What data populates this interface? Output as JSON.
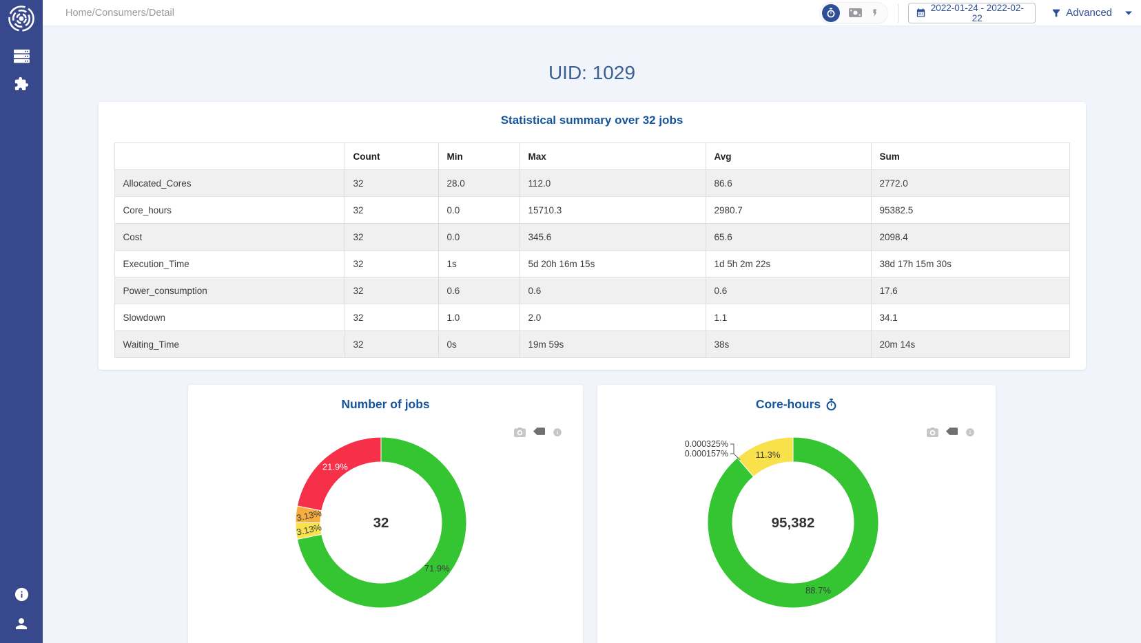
{
  "colors": {
    "sidebar": "#38488c",
    "accent_navy": "#2e4f96",
    "title_blue": "#15549a",
    "page_title_blue": "#3a6191",
    "content_bg": "#f1f4fb",
    "green": "#35c532",
    "yellow": "#f8e14b",
    "orange": "#f7ae3d",
    "red": "#f7304a"
  },
  "sidebar": {
    "icons": [
      "logo",
      "servers-icon",
      "puzzle-icon",
      "info-icon",
      "user-icon"
    ]
  },
  "topbar": {
    "breadcrumb": "Home/Consumers/Detail",
    "metric_toggle": {
      "options": [
        "stopwatch-icon",
        "banknote-icon",
        "lightning-icon"
      ],
      "active": "stopwatch-icon"
    },
    "date_range": "2022-01-24 - 2022-02-22",
    "advanced_label": "Advanced"
  },
  "page_title": "UID: 1029",
  "summary": {
    "title": "Statistical summary over 32 jobs",
    "columns": [
      "",
      "Count",
      "Min",
      "Max",
      "Avg",
      "Sum"
    ],
    "rows": [
      [
        "Allocated_Cores",
        "32",
        "28.0",
        "112.0",
        "86.6",
        "2772.0"
      ],
      [
        "Core_hours",
        "32",
        "0.0",
        "15710.3",
        "2980.7",
        "95382.5"
      ],
      [
        "Cost",
        "32",
        "0.0",
        "345.6",
        "65.6",
        "2098.4"
      ],
      [
        "Execution_Time",
        "32",
        "1s",
        "5d 20h 16m 15s",
        "1d 5h 2m 22s",
        "38d 17h 15m 30s"
      ],
      [
        "Power_consumption",
        "32",
        "0.6",
        "0.6",
        "0.6",
        "17.6"
      ],
      [
        "Slowdown",
        "32",
        "1.0",
        "2.0",
        "1.1",
        "34.1"
      ],
      [
        "Waiting_Time",
        "32",
        "0s",
        "19m 59s",
        "38s",
        "20m 14s"
      ]
    ]
  },
  "chart_data": [
    {
      "type": "pie",
      "title": "Number of jobs",
      "center_label": "32",
      "hole": 0.71,
      "legend": "none",
      "units": "percent",
      "segments": [
        {
          "label": "71.9%",
          "value": 71.9,
          "color": "#35c532"
        },
        {
          "label": "3.13%",
          "value": 3.13,
          "color": "#f8e14b"
        },
        {
          "label": "3.13%",
          "value": 3.13,
          "color": "#f7ae3d"
        },
        {
          "label": "21.9%",
          "value": 21.9,
          "color": "#f7304a"
        }
      ]
    },
    {
      "type": "pie",
      "title": "Core-hours",
      "title_icon": "stopwatch-icon",
      "center_label": "95,382",
      "hole": 0.71,
      "legend": "none",
      "units": "percent",
      "segments": [
        {
          "label": "88.7%",
          "value": 88.7,
          "color": "#35c532"
        },
        {
          "label": "0.000325%",
          "value": 0.000325,
          "color": "#f7ae3d"
        },
        {
          "label": "0.000157%",
          "value": 0.000157,
          "color": "#f7304a"
        },
        {
          "label": "11.3%",
          "value": 11.3,
          "color": "#f8e14b"
        }
      ]
    }
  ],
  "modebar": {
    "icons": [
      "camera-icon",
      "tag-icon",
      "info-icon"
    ]
  }
}
